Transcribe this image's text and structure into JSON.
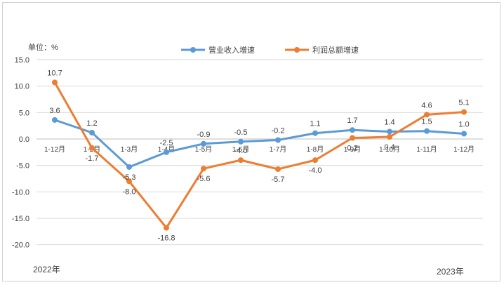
{
  "chart_data": {
    "type": "line",
    "unit_label": "单位：%",
    "categories": [
      "1-12月",
      "1-2月",
      "1-3月",
      "1-4月",
      "1-5月",
      "1-6月",
      "1-7月",
      "1-8月",
      "1-9月",
      "1-10月",
      "1-11月",
      "1-12月"
    ],
    "period_labels": {
      "start": "2022年",
      "end": "2023年"
    },
    "yticks": [
      "15.0",
      "10.0",
      "5.0",
      "0.0",
      "-5.0",
      "-10.0",
      "-15.0",
      "-20.0"
    ],
    "ylim": [
      -20,
      15
    ],
    "grid": true,
    "legend_position": "top",
    "series": [
      {
        "name": "营业收入增速",
        "color": "#5b9bd5",
        "values": [
          3.6,
          1.2,
          -5.3,
          -2.5,
          -0.9,
          -0.5,
          -0.2,
          1.1,
          1.7,
          1.4,
          1.5,
          1.0
        ],
        "labels": [
          "3.6",
          "1.2",
          "-5.3",
          "-2.5",
          "-0.9",
          "-0.5",
          "-0.2",
          "1.1",
          "1.7",
          "1.4",
          "1.5",
          "1.0"
        ]
      },
      {
        "name": "利润总额增速",
        "color": "#ed7d31",
        "values": [
          10.7,
          -1.7,
          -8.0,
          -16.8,
          -5.6,
          -4.0,
          -5.7,
          -4.0,
          0.2,
          0.4,
          4.6,
          5.1
        ],
        "labels": [
          "10.7",
          "-1.7",
          "-8.0",
          "-16.8",
          "-5.6",
          "-4.0",
          "-5.7",
          "-4.0",
          "0.2",
          "0.4",
          "4.6",
          "5.1"
        ]
      }
    ]
  }
}
